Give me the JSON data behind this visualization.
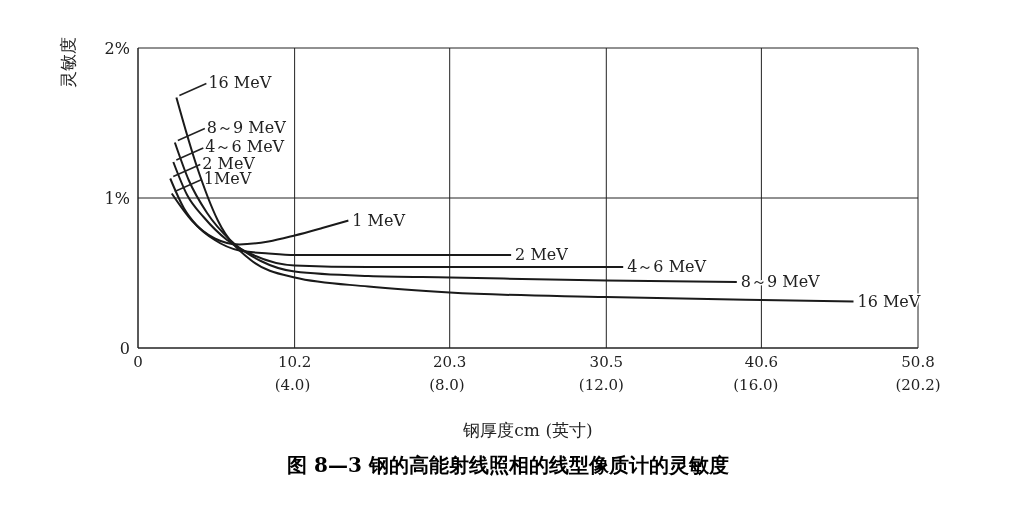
{
  "chart_data": {
    "type": "line",
    "title": "图 8—3   钢的高能射线照相的线型像质计的灵敏度",
    "xlabel": "钢厚度cm (英寸)",
    "ylabel": "灵敏度",
    "xlim": [
      0,
      50.8
    ],
    "xticks": [
      0,
      10.2,
      20.3,
      30.5,
      40.6,
      50.8
    ],
    "x2lim": [
      0,
      20.2
    ],
    "x2ticks": [
      {
        "value": 4.0,
        "label": "(4.0)"
      },
      {
        "value": 8.0,
        "label": "(8.0)"
      },
      {
        "value": 12.0,
        "label": "(12.0)"
      },
      {
        "value": 16.0,
        "label": "(16.0)"
      },
      {
        "value": 20.2,
        "label": "(20.2)"
      }
    ],
    "ylim": [
      0,
      2
    ],
    "yticks": [
      0,
      {
        "value": 1,
        "label": "1%"
      },
      {
        "value": 2,
        "label": "2%"
      }
    ],
    "grid": true,
    "marker": "none",
    "line_style": "solid",
    "series": [
      {
        "name": "1 MeV",
        "color": "#1a1a1a",
        "x": [
          2.2,
          3.5,
          5.0,
          6.6,
          8.5,
          10.2,
          12.0,
          13.7
        ],
        "values": [
          1.03,
          0.85,
          0.73,
          0.69,
          0.71,
          0.75,
          0.8,
          0.85
        ]
      },
      {
        "name": "2 MeV",
        "color": "#1a1a1a",
        "x": [
          2.1,
          3.0,
          3.8,
          5.0,
          6.6,
          8.5,
          10.2,
          15.0,
          20.3,
          24.3
        ],
        "values": [
          1.13,
          0.93,
          0.82,
          0.72,
          0.65,
          0.63,
          0.62,
          0.62,
          0.62,
          0.62
        ]
      },
      {
        "name": "4～6 MeV",
        "color": "#1a1a1a",
        "x": [
          2.3,
          3.2,
          4.3,
          5.8,
          7.5,
          10.2,
          15.0,
          20.3,
          25.0,
          31.6
        ],
        "values": [
          1.24,
          1.02,
          0.87,
          0.72,
          0.62,
          0.55,
          0.54,
          0.54,
          0.54,
          0.54
        ]
      },
      {
        "name": "8～9 MeV",
        "color": "#1a1a1a",
        "x": [
          2.4,
          3.3,
          4.5,
          6.0,
          8.0,
          10.2,
          15.0,
          20.3,
          30.5,
          39.0
        ],
        "values": [
          1.37,
          1.12,
          0.9,
          0.72,
          0.58,
          0.51,
          0.48,
          0.47,
          0.45,
          0.44
        ]
      },
      {
        "name": "16 MeV",
        "color": "#1a1a1a",
        "x": [
          2.5,
          3.8,
          5.2,
          7.3,
          10.2,
          15.0,
          20.3,
          30.5,
          40.6,
          46.6
        ],
        "values": [
          1.67,
          1.22,
          0.85,
          0.59,
          0.47,
          0.41,
          0.37,
          0.34,
          0.32,
          0.31
        ]
      }
    ],
    "annotations": [
      {
        "text": "1MeV",
        "x": 2.2,
        "y": 1.03
      },
      {
        "text": "2 MeV",
        "x": 2.1,
        "y": 1.13
      },
      {
        "text": "4～6 MeV",
        "x": 2.3,
        "y": 1.24
      },
      {
        "text": "8～9 MeV",
        "x": 2.4,
        "y": 1.37
      },
      {
        "text": "16 MeV",
        "x": 2.5,
        "y": 1.67
      }
    ]
  }
}
